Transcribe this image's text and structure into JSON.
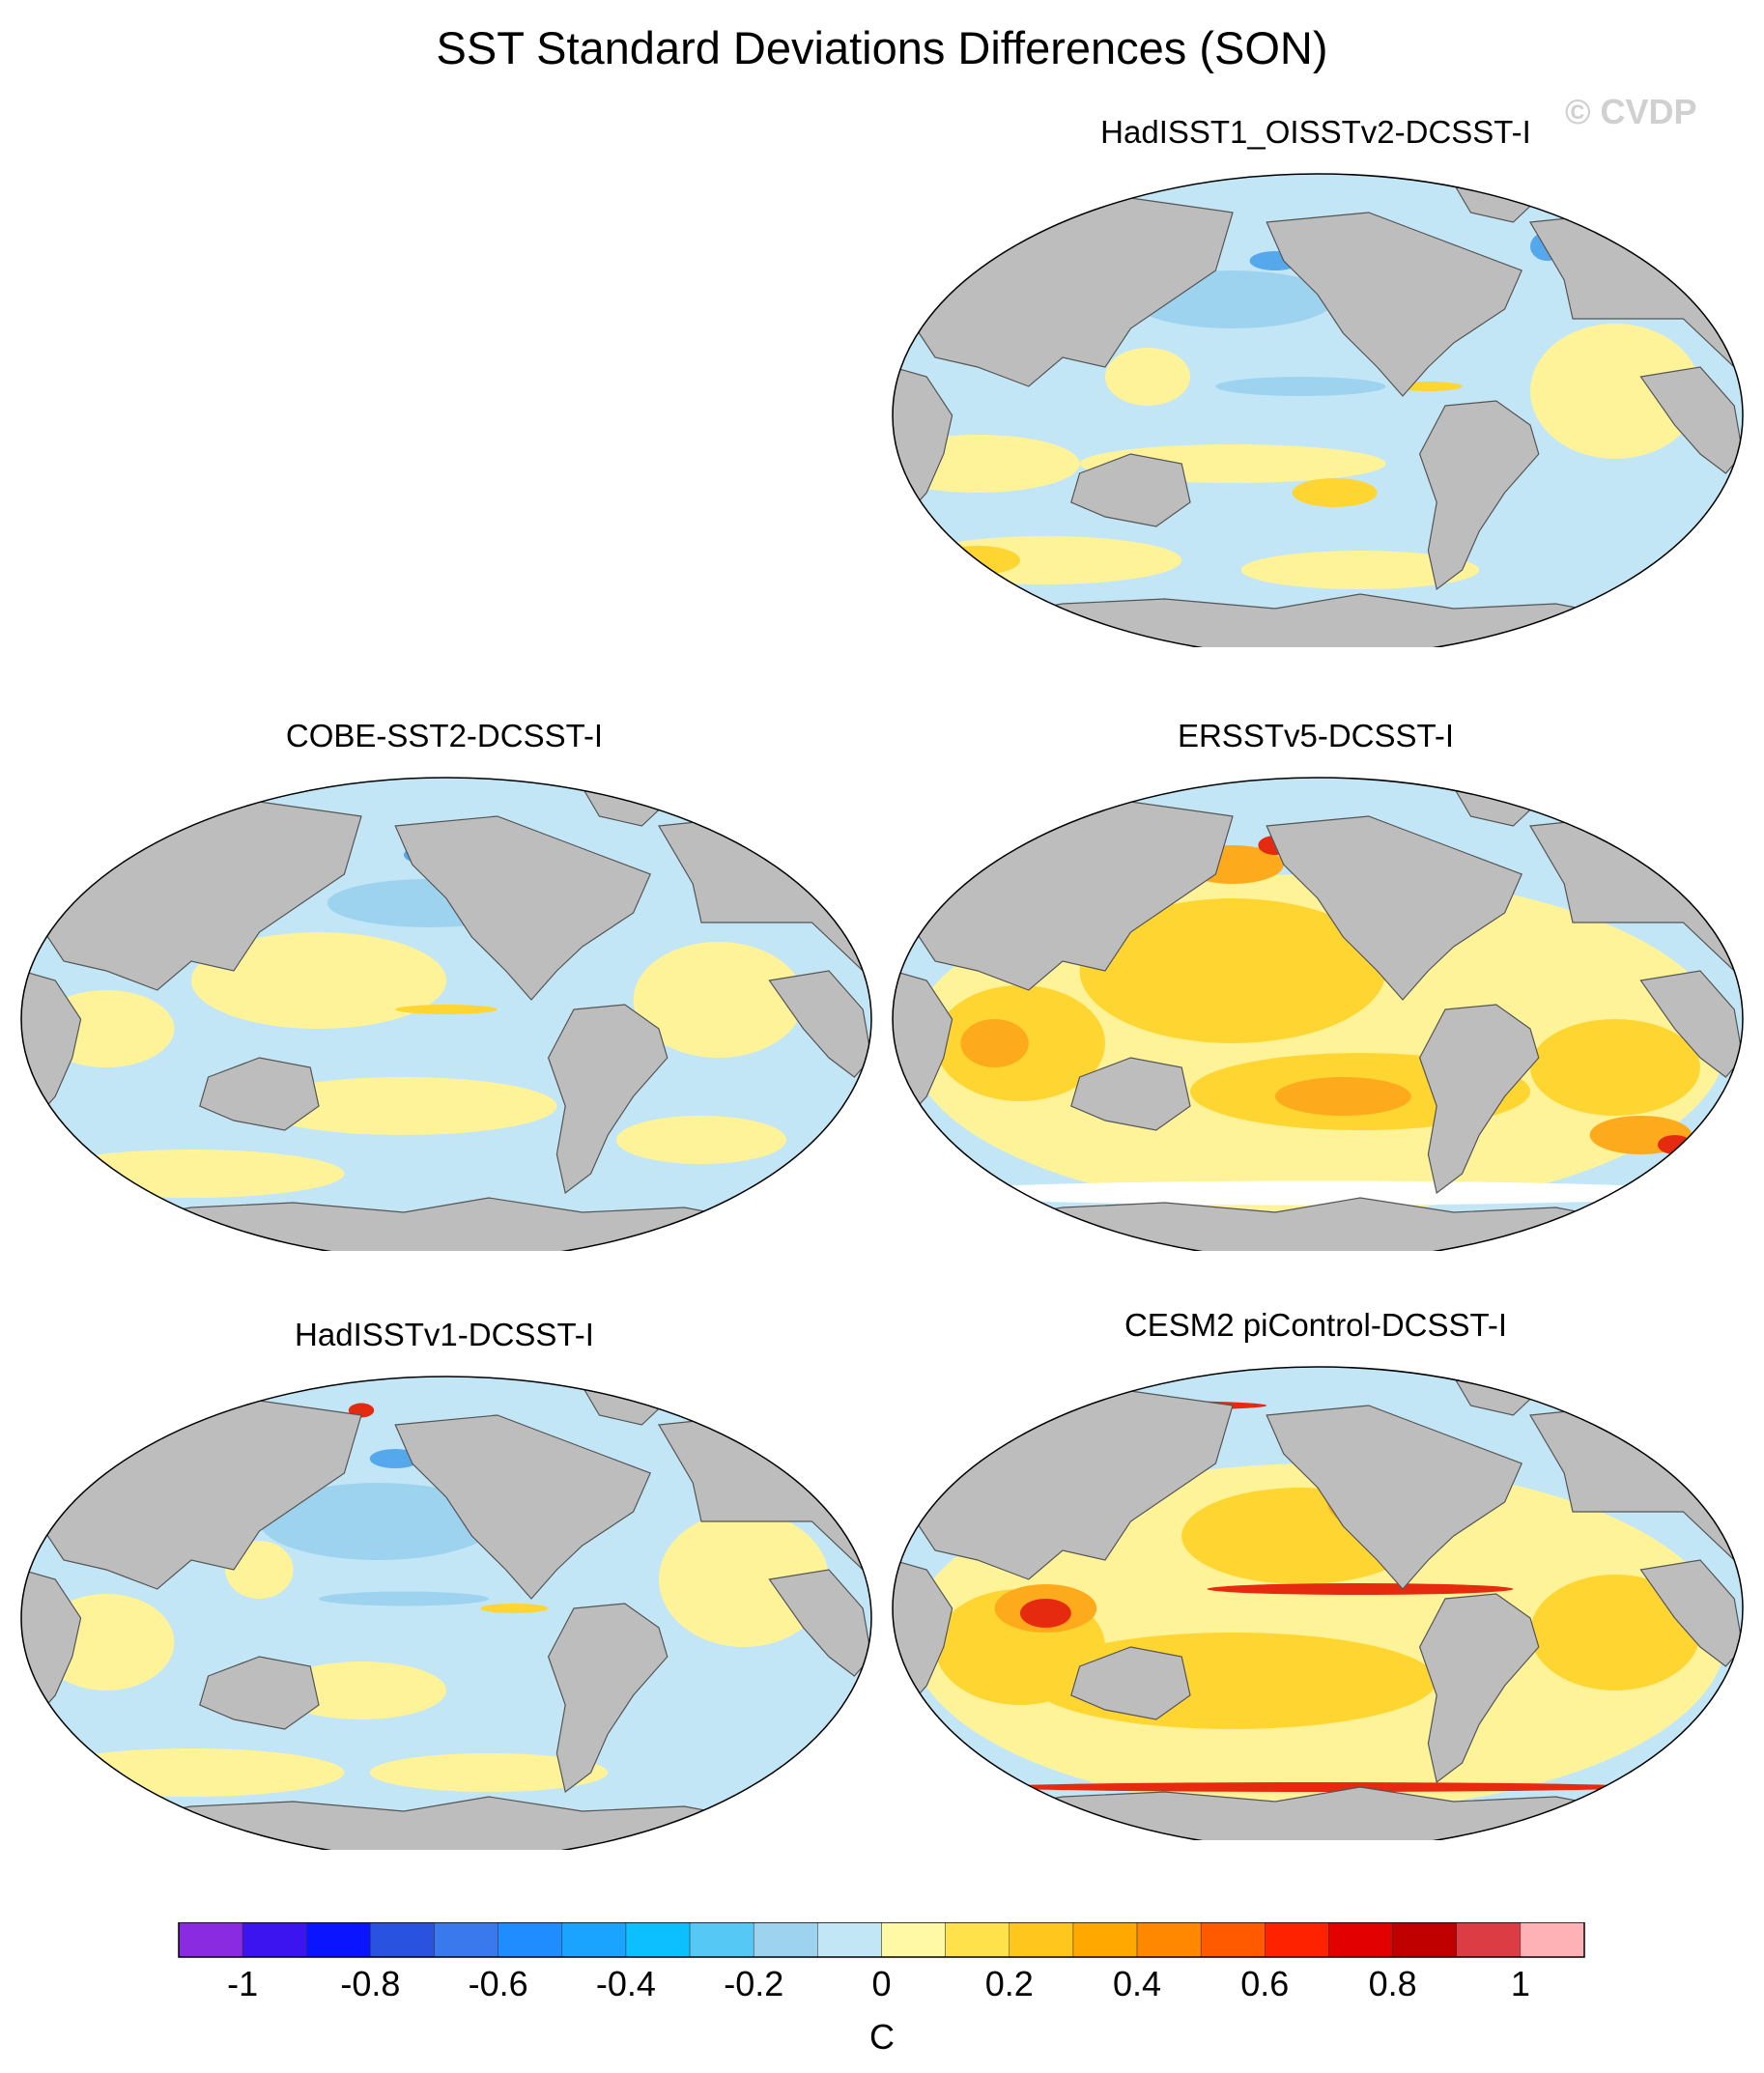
{
  "figure": {
    "title": "SST Standard Deviations Differences (SON)",
    "watermark": "© CVDP"
  },
  "panels": [
    {
      "id": "p1",
      "title": "HadISST1_OISSTv2-DCSST-I",
      "pattern": "mostly slight negative (light blue) with slight positive (pale yellow) bands; stronger negative in North Pacific",
      "dominant_level": "-0.1 to 0",
      "accent_color": "#aed8f2"
    },
    {
      "id": "p2",
      "title": "COBE-SST2-DCSST-I",
      "pattern": "mixed light blue and pale yellow; equatorial Pacific positive tongue",
      "dominant_level": "-0.1 to 0.1",
      "accent_color": "#fff39a"
    },
    {
      "id": "p3",
      "title": "ERSSTv5-DCSST-I",
      "pattern": "widespread positive (yellow-orange), up to ~0.5 in Southern Ocean",
      "dominant_level": "0.1 to 0.4",
      "accent_color": "#fdbb2c"
    },
    {
      "id": "p4",
      "title": "HadISSTv1-DCSST-I",
      "pattern": "mostly light blue with pale yellow patches",
      "dominant_level": "-0.2 to 0.1",
      "accent_color": "#aed8f2"
    },
    {
      "id": "p5",
      "title": "CESM2 piControl-DCSST-I",
      "pattern": "strong positive; equatorial Pacific and Southern Ocean bands up to ~0.8",
      "dominant_level": "0.1 to 0.8",
      "accent_color": "#fd9e1a"
    }
  ],
  "colorbar": {
    "units": "C",
    "tick_labels": [
      "-1",
      "-0.8",
      "-0.6",
      "-0.4",
      "-0.2",
      "0",
      "0.2",
      "0.4",
      "0.6",
      "0.8",
      "1"
    ],
    "tick_values": [
      -1,
      -0.8,
      -0.6,
      -0.4,
      -0.2,
      0,
      0.2,
      0.4,
      0.6,
      0.8,
      1
    ],
    "colors": [
      "#8a2be2",
      "#3b14f0",
      "#0a14ff",
      "#2a52e0",
      "#3a78ee",
      "#1f8cff",
      "#1aa3ff",
      "#0cc0ff",
      "#55c8f5",
      "#9ed3f0",
      "#c3e6f6",
      "#fff9a6",
      "#ffe14b",
      "#ffc61e",
      "#ffa800",
      "#ff8800",
      "#ff5a00",
      "#ff2200",
      "#e30000",
      "#c00000",
      "#dc3c44",
      "#ffb2b6"
    ]
  },
  "map_colors": {
    "land": "#bdbdbd",
    "neg_light": "#c3e6f6",
    "neg_mid": "#9ed3f0",
    "neg_strong": "#55a8ec",
    "pos_light": "#fff39a",
    "pos_mid": "#ffd531",
    "pos_strong": "#fdab1c",
    "pos_red": "#e52a10",
    "white": "#ffffff"
  }
}
